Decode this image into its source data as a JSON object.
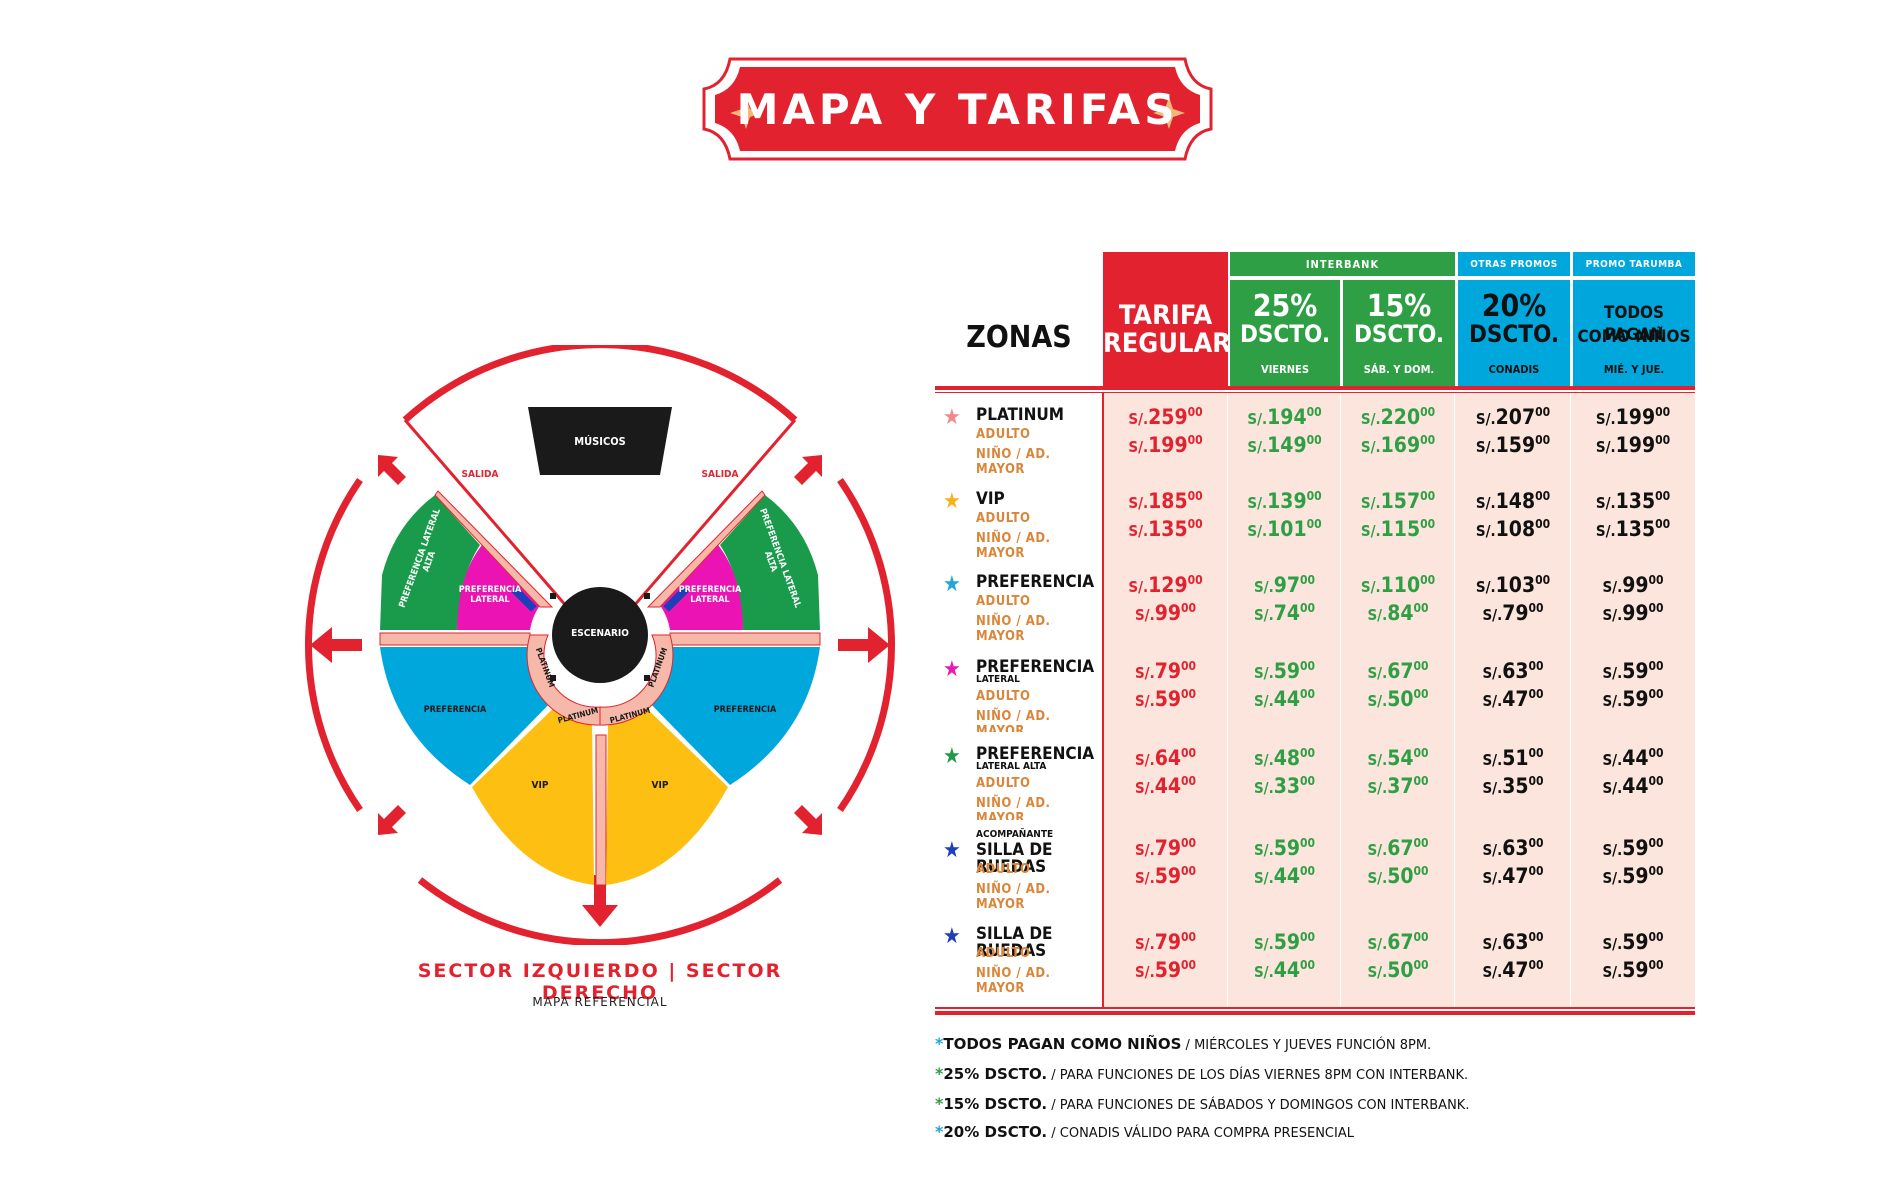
{
  "title": "MAPA Y TARIFAS",
  "map": {
    "stage": "ESCENARIO",
    "musicians": "MÚSICOS",
    "exit_left": "SALIDA",
    "exit_right": "SALIDA",
    "zones": {
      "pref_lateral_alta_left": "PREFERENCIA LATERAL ALTA",
      "pref_lateral_alta_right": "PREFERENCIA LATERAL ALTA",
      "pref_lateral_left": "PREFERENCIA LATERAL",
      "pref_lateral_right": "PREFERENCIA LATERAL",
      "pref_left": "PREFERENCIA",
      "pref_right": "PREFERENCIA",
      "vip_left": "VIP",
      "vip_right": "VIP",
      "platinum_1": "PLATINUM",
      "platinum_2": "PLATINUM",
      "platinum_3": "PLATINUM",
      "platinum_4": "PLATINUM"
    },
    "caption": "SECTOR IZQUIERDO | SECTOR DERECHO",
    "subcaption": "MAPA REFERENCIAL",
    "colors": {
      "red": "#e2232f",
      "green": "#1a9b4b",
      "magenta": "#ec13b4",
      "blue": "#00a7dd",
      "yellow": "#fdbf11",
      "pink": "#f6b8a8",
      "black": "#1a1a1a"
    }
  },
  "table": {
    "zones_header": "ZONAS",
    "group_interbank": "INTERBANK",
    "group_otras": "OTRAS PROMOS",
    "group_tarumba": "PROMO TARUMBA",
    "columns": [
      {
        "line1": "TARIFA",
        "line2": "REGULAR",
        "sub": ""
      },
      {
        "line1": "25%",
        "line2": "DSCTO.",
        "sub": "VIERNES"
      },
      {
        "line1": "15%",
        "line2": "DSCTO.",
        "sub": "SÁB. Y DOM."
      },
      {
        "line1": "20%",
        "line2": "DSCTO.",
        "sub": "CONADIS"
      },
      {
        "line1": "TODOS PAGAN",
        "line2": "COMO NIÑOS",
        "sub": "MIÉ. Y JUE."
      }
    ],
    "currency": "S/.",
    "label_adult": "ADULTO",
    "label_child": "NIÑO / AD. MAYOR",
    "rows": [
      {
        "pre": "",
        "name": "PLATINUM",
        "sub": "",
        "star_color": "#f08a8a",
        "adult": [
          [
            "259",
            "00"
          ],
          [
            "194",
            "00"
          ],
          [
            "220",
            "00"
          ],
          [
            "207",
            "00"
          ],
          [
            "199",
            "00"
          ]
        ],
        "child": [
          [
            "199",
            "00"
          ],
          [
            "149",
            "00"
          ],
          [
            "169",
            "00"
          ],
          [
            "159",
            "00"
          ],
          [
            "199",
            "00"
          ]
        ]
      },
      {
        "pre": "",
        "name": "VIP",
        "sub": "",
        "star_color": "#f6b21b",
        "adult": [
          [
            "185",
            "00"
          ],
          [
            "139",
            "00"
          ],
          [
            "157",
            "00"
          ],
          [
            "148",
            "00"
          ],
          [
            "135",
            "00"
          ]
        ],
        "child": [
          [
            "135",
            "00"
          ],
          [
            "101",
            "00"
          ],
          [
            "115",
            "00"
          ],
          [
            "108",
            "00"
          ],
          [
            "135",
            "00"
          ]
        ]
      },
      {
        "pre": "",
        "name": "PREFERENCIA",
        "sub": "",
        "star_color": "#23a6d5",
        "adult": [
          [
            "129",
            "00"
          ],
          [
            "97",
            "00"
          ],
          [
            "110",
            "00"
          ],
          [
            "103",
            "00"
          ],
          [
            "99",
            "00"
          ]
        ],
        "child": [
          [
            "99",
            "00"
          ],
          [
            "74",
            "00"
          ],
          [
            "84",
            "00"
          ],
          [
            "79",
            "00"
          ],
          [
            "99",
            "00"
          ]
        ]
      },
      {
        "pre": "",
        "name": "PREFERENCIA",
        "sub": "LATERAL",
        "star_color": "#e61bb5",
        "adult": [
          [
            "79",
            "00"
          ],
          [
            "59",
            "00"
          ],
          [
            "67",
            "00"
          ],
          [
            "63",
            "00"
          ],
          [
            "59",
            "00"
          ]
        ],
        "child": [
          [
            "59",
            "00"
          ],
          [
            "44",
            "00"
          ],
          [
            "50",
            "00"
          ],
          [
            "47",
            "00"
          ],
          [
            "59",
            "00"
          ]
        ]
      },
      {
        "pre": "",
        "name": "PREFERENCIA",
        "sub": "LATERAL ALTA",
        "star_color": "#1e9a4b",
        "adult": [
          [
            "64",
            "00"
          ],
          [
            "48",
            "00"
          ],
          [
            "54",
            "00"
          ],
          [
            "51",
            "00"
          ],
          [
            "44",
            "00"
          ]
        ],
        "child": [
          [
            "44",
            "00"
          ],
          [
            "33",
            "00"
          ],
          [
            "37",
            "00"
          ],
          [
            "35",
            "00"
          ],
          [
            "44",
            "00"
          ]
        ]
      },
      {
        "pre": "ACOMPAÑANTE",
        "name": "SILLA DE RUEDAS",
        "sub": "",
        "star_color": "#1d3fb8",
        "adult": [
          [
            "79",
            "00"
          ],
          [
            "59",
            "00"
          ],
          [
            "67",
            "00"
          ],
          [
            "63",
            "00"
          ],
          [
            "59",
            "00"
          ]
        ],
        "child": [
          [
            "59",
            "00"
          ],
          [
            "44",
            "00"
          ],
          [
            "50",
            "00"
          ],
          [
            "47",
            "00"
          ],
          [
            "59",
            "00"
          ]
        ]
      },
      {
        "pre": "",
        "name": "SILLA DE RUEDAS",
        "sub": "",
        "star_color": "#1d3fb8",
        "adult": [
          [
            "79",
            "00"
          ],
          [
            "59",
            "00"
          ],
          [
            "67",
            "00"
          ],
          [
            "63",
            "00"
          ],
          [
            "59",
            "00"
          ]
        ],
        "child": [
          [
            "59",
            "00"
          ],
          [
            "44",
            "00"
          ],
          [
            "50",
            "00"
          ],
          [
            "47",
            "00"
          ],
          [
            "59",
            "00"
          ]
        ]
      }
    ]
  },
  "notes": [
    {
      "ast": "*",
      "ast_color": "#23a6d5",
      "bold": "TODOS PAGAN COMO NIÑOS",
      "text": " / MIÉRCOLES Y JUEVES FUNCIÓN 8PM."
    },
    {
      "ast": "*",
      "ast_color": "#2f9f45",
      "bold": "25% DSCTO.",
      "text": " / PARA FUNCIONES DE LOS DÍAS VIERNES 8PM CON INTERBANK."
    },
    {
      "ast": "*",
      "ast_color": "#2f9f45",
      "bold": "15% DSCTO.",
      "text": " / PARA FUNCIONES DE SÁBADOS Y DOMINGOS CON INTERBANK."
    },
    {
      "ast": "*",
      "ast_color": "#23a6d5",
      "bold": "20% DSCTO.",
      "text": " / CONADIS VÁLIDO PARA COMPRA PRESENCIAL"
    }
  ]
}
